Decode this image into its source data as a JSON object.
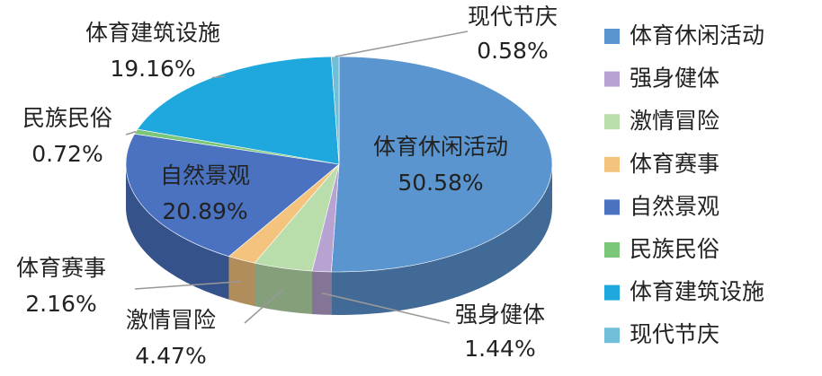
{
  "chart_data": {
    "type": "pie",
    "categories": [
      "体育休闲活动",
      "强身健体",
      "激情冒险",
      "体育赛事",
      "自然景观",
      "民族民俗",
      "体育建筑设施",
      "现代节庆"
    ],
    "values": [
      50.58,
      1.44,
      4.47,
      2.16,
      20.89,
      0.72,
      19.16,
      0.58
    ],
    "value_labels": [
      "50.58%",
      "1.44%",
      "4.47%",
      "2.16%",
      "20.89%",
      "0.72%",
      "19.16%",
      "0.58%"
    ],
    "colors": [
      "#5a95d0",
      "#b7a2d2",
      "#b9ddab",
      "#f4c47f",
      "#4a72c0",
      "#7cc67a",
      "#1fa8dd",
      "#70bed8"
    ],
    "legend": "right"
  }
}
